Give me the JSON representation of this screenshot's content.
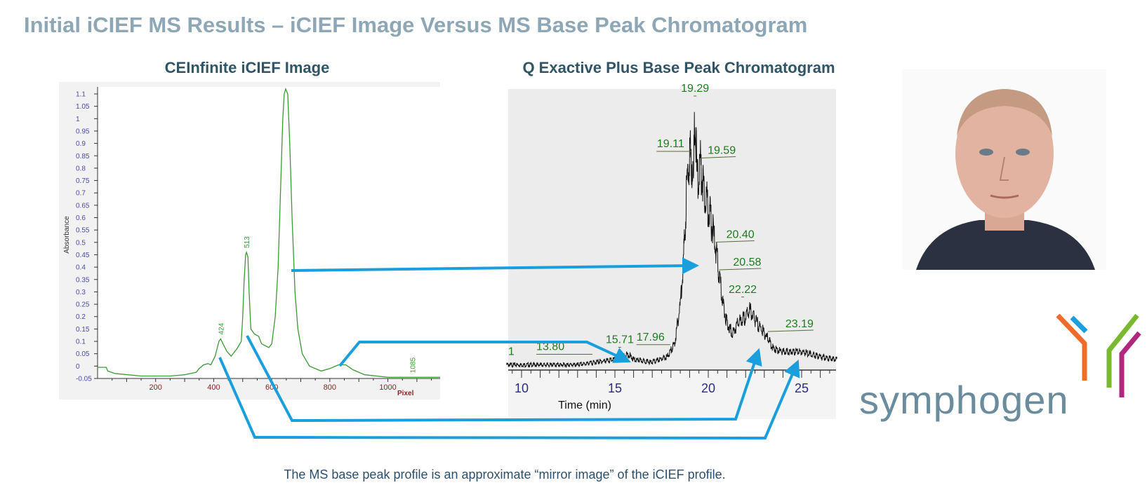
{
  "slide": {
    "title": "Initial iCIEF MS Results – iCIEF Image Versus MS Base Peak Chromatogram",
    "caption": "The MS base peak profile is an approximate “mirror image” of the iCIEF profile.",
    "logo_text": "symphogen",
    "accent_color": "#1a9fdc",
    "logo_colors": [
      "#ee6c2a",
      "#1a9fdc",
      "#7ab82e",
      "#b0287e"
    ]
  },
  "chart_data": [
    {
      "type": "line",
      "title": "CEInfinite iCIEF Image",
      "xlabel": "Pixel",
      "ylabel": "Absorbance",
      "xlim": [
        0,
        1180
      ],
      "ylim": [
        -0.05,
        1.1
      ],
      "xticks": [
        200,
        400,
        600,
        800,
        1000
      ],
      "yticks": [
        1.1,
        1.05,
        1,
        0.95,
        0.9,
        0.85,
        0.8,
        0.75,
        0.7,
        0.65,
        0.6,
        0.55,
        0.5,
        0.45,
        0.4,
        0.35,
        0.3,
        0.25,
        0.2,
        0.15,
        0.1,
        0.05,
        0,
        -0.05
      ],
      "line_color": "#3a9a35",
      "peak_labels": [
        {
          "x": 424,
          "label": "424"
        },
        {
          "x": 513,
          "label": "513"
        },
        {
          "x": 1085,
          "label": "1085"
        }
      ],
      "points": [
        [
          0,
          -0.005
        ],
        [
          30,
          -0.005
        ],
        [
          35,
          -0.02
        ],
        [
          60,
          -0.03
        ],
        [
          150,
          -0.04
        ],
        [
          250,
          -0.04
        ],
        [
          300,
          -0.035
        ],
        [
          340,
          -0.025
        ],
        [
          350,
          -0.01
        ],
        [
          365,
          0.005
        ],
        [
          380,
          0.01
        ],
        [
          390,
          0.005
        ],
        [
          405,
          0.04
        ],
        [
          418,
          0.1
        ],
        [
          424,
          0.11
        ],
        [
          432,
          0.09
        ],
        [
          445,
          0.06
        ],
        [
          460,
          0.04
        ],
        [
          480,
          0.07
        ],
        [
          495,
          0.1
        ],
        [
          500,
          0.2
        ],
        [
          505,
          0.35
        ],
        [
          510,
          0.45
        ],
        [
          513,
          0.46
        ],
        [
          518,
          0.44
        ],
        [
          522,
          0.3
        ],
        [
          528,
          0.15
        ],
        [
          540,
          0.13
        ],
        [
          555,
          0.12
        ],
        [
          565,
          0.09
        ],
        [
          590,
          0.075
        ],
        [
          600,
          0.09
        ],
        [
          612,
          0.2
        ],
        [
          622,
          0.4
        ],
        [
          630,
          0.7
        ],
        [
          638,
          1.0
        ],
        [
          643,
          1.1
        ],
        [
          648,
          1.12
        ],
        [
          655,
          1.1
        ],
        [
          662,
          0.9
        ],
        [
          670,
          0.6
        ],
        [
          680,
          0.3
        ],
        [
          690,
          0.15
        ],
        [
          705,
          0.05
        ],
        [
          730,
          0.0
        ],
        [
          770,
          -0.02
        ],
        [
          800,
          -0.01
        ],
        [
          830,
          0.005
        ],
        [
          855,
          0.005
        ],
        [
          880,
          -0.015
        ],
        [
          920,
          -0.035
        ],
        [
          1000,
          -0.045
        ],
        [
          1180,
          -0.045
        ]
      ]
    },
    {
      "type": "line",
      "title": "Q Exactive Plus Base Peak Chromatogram",
      "xlabel": "Time (min)",
      "ylabel": "",
      "xlim": [
        9.2,
        26.9
      ],
      "ylim": [
        0,
        100
      ],
      "xticks": [
        10,
        15,
        20,
        25
      ],
      "line_color": "#111111",
      "peak_labels": [
        {
          "x": 19.29,
          "label": "19.29"
        },
        {
          "x": 19.11,
          "label": "19.11"
        },
        {
          "x": 19.59,
          "label": "19.59"
        },
        {
          "x": 20.4,
          "label": "20.40"
        },
        {
          "x": 20.58,
          "label": "20.58"
        },
        {
          "x": 22.22,
          "label": "22.22"
        },
        {
          "x": 23.19,
          "label": "23.19"
        },
        {
          "x": 17.96,
          "label": "17.96"
        },
        {
          "x": 15.71,
          "label": "15.71"
        },
        {
          "x": 13.8,
          "label": "13.80"
        },
        {
          "x": 9.9,
          "label": "1"
        }
      ],
      "points": [
        [
          9.2,
          2
        ],
        [
          13,
          2
        ],
        [
          14,
          3
        ],
        [
          15,
          4
        ],
        [
          15.71,
          6
        ],
        [
          16,
          4
        ],
        [
          17,
          3
        ],
        [
          17.8,
          5
        ],
        [
          18.2,
          10
        ],
        [
          18.5,
          25
        ],
        [
          18.7,
          45
        ],
        [
          18.85,
          70
        ],
        [
          19.0,
          82
        ],
        [
          19.11,
          80
        ],
        [
          19.2,
          70
        ],
        [
          19.29,
          100
        ],
        [
          19.4,
          72
        ],
        [
          19.59,
          78
        ],
        [
          19.8,
          68
        ],
        [
          20.0,
          62
        ],
        [
          20.2,
          55
        ],
        [
          20.4,
          46
        ],
        [
          20.58,
          36
        ],
        [
          20.8,
          25
        ],
        [
          21.0,
          18
        ],
        [
          21.3,
          14
        ],
        [
          21.6,
          18
        ],
        [
          22.0,
          20
        ],
        [
          22.22,
          23
        ],
        [
          22.5,
          19
        ],
        [
          23.0,
          14
        ],
        [
          23.19,
          12
        ],
        [
          23.5,
          8
        ],
        [
          24,
          7
        ],
        [
          25,
          7
        ],
        [
          26,
          5
        ],
        [
          26.9,
          4
        ]
      ]
    }
  ]
}
